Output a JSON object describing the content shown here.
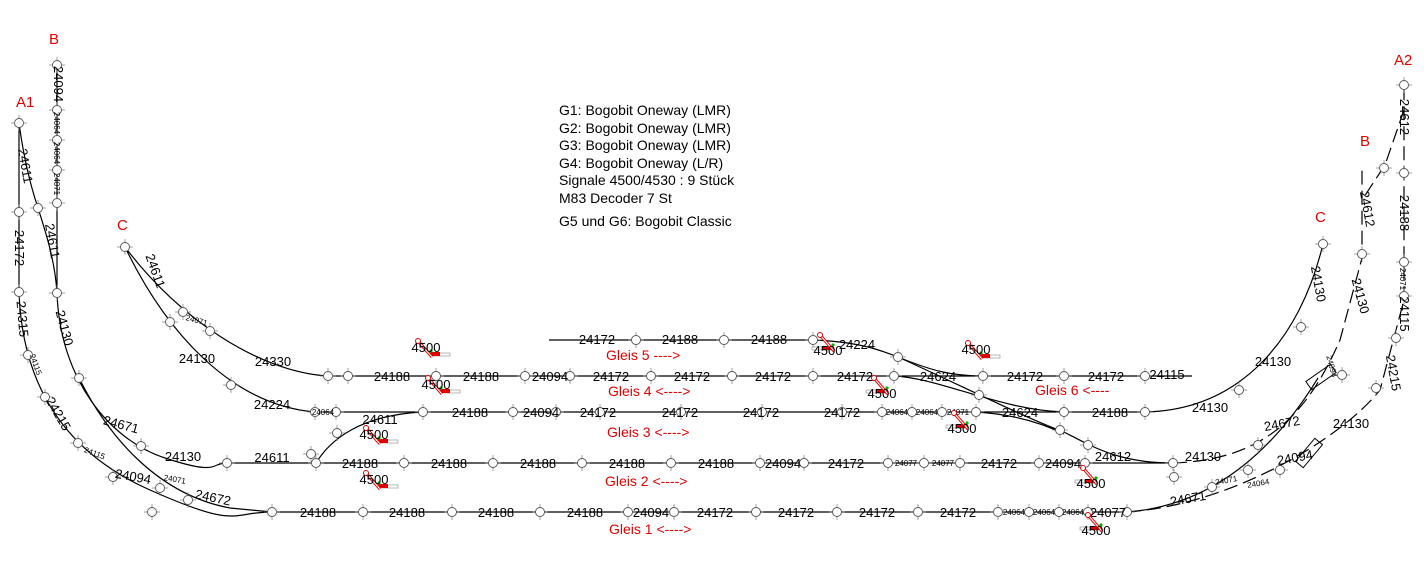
{
  "colors": {
    "track": "#000000",
    "label_red": "#e00000",
    "signal_red": "#e00000",
    "signal_green": "#00b000"
  },
  "legend": {
    "lines": [
      "G1: Bogobit Oneway (LMR)",
      "G2: Bogobit Oneway (LMR)",
      "G3: Bogobit Oneway (LMR)",
      "G4: Bogobit Oneway (L/R)",
      "Signale 4500/4530 : 9 Stück",
      "M83 Decoder 7 St"
    ],
    "extra": "G5 und G6: Bogobit Classic"
  },
  "connectors": {
    "a1": "A1",
    "b_left": "B",
    "c_left": "C",
    "a2": "A2",
    "b_right": "B",
    "c_right": "C"
  },
  "gleis": {
    "g1": "Gleis 1 <---->",
    "g2": "Gleis 2 <---->",
    "g3": "Gleis 3 <---->",
    "g4": "Gleis 4 <---->",
    "g5": "Gleis 5 ---->",
    "g6": "Gleis 6 <----"
  },
  "signal_label": "4500",
  "pieces": {
    "g1": [
      "24188",
      "24188",
      "24188",
      "24188",
      "24094",
      "24172",
      "24172",
      "24172",
      "24172",
      "24064",
      "24064",
      "24064",
      "24077"
    ],
    "g2": [
      "24130",
      "24611",
      "24188",
      "24188",
      "24188",
      "24188",
      "24188",
      "24094",
      "24172",
      "24077",
      "24077",
      "24172",
      "24094",
      "24612",
      "24130"
    ],
    "g3": [
      "24224",
      "24064",
      "24611",
      "24188",
      "24094",
      "24172",
      "24172",
      "24172",
      "24172",
      "24064",
      "24064",
      "24071",
      "24624",
      "24188",
      "24130"
    ],
    "g4": [
      "24330",
      "24188",
      "24188",
      "24094",
      "24172",
      "24172",
      "24172",
      "24172",
      "24624",
      "24172",
      "24172",
      "24115"
    ],
    "g5": [
      "24172",
      "24188",
      "24188",
      "24224"
    ],
    "left": [
      "24094",
      "24064",
      "24064",
      "24071",
      "24611",
      "24172",
      "24315",
      "24115",
      "24215",
      "24115",
      "24094",
      "24611",
      "24130",
      "24671",
      "24071",
      "24672",
      "24611",
      "24071",
      "24130"
    ],
    "right": [
      "24612",
      "24188",
      "24071",
      "24115",
      "24215",
      "24130",
      "24094",
      "24064",
      "24071",
      "24612",
      "24130",
      "24094",
      "24672",
      "24671",
      "24130",
      "24130"
    ]
  }
}
